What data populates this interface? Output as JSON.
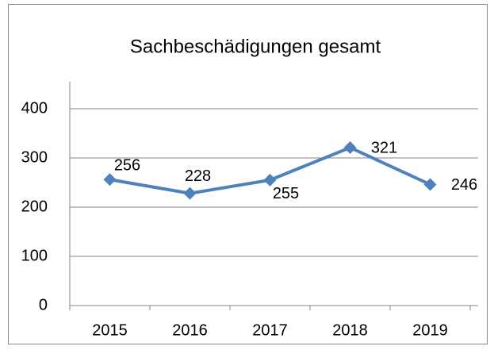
{
  "chart_data": {
    "type": "line",
    "title": "Sachbeschädigungen gesamt",
    "categories": [
      "2015",
      "2016",
      "2017",
      "2018",
      "2019"
    ],
    "series": [
      {
        "name": "Sachbeschädigungen gesamt",
        "color": "#4f81bd",
        "values": [
          256,
          228,
          255,
          321,
          246
        ]
      }
    ],
    "ylim": [
      0,
      400
    ],
    "yticks": [
      0,
      100,
      200,
      300,
      400
    ],
    "grid": true
  }
}
